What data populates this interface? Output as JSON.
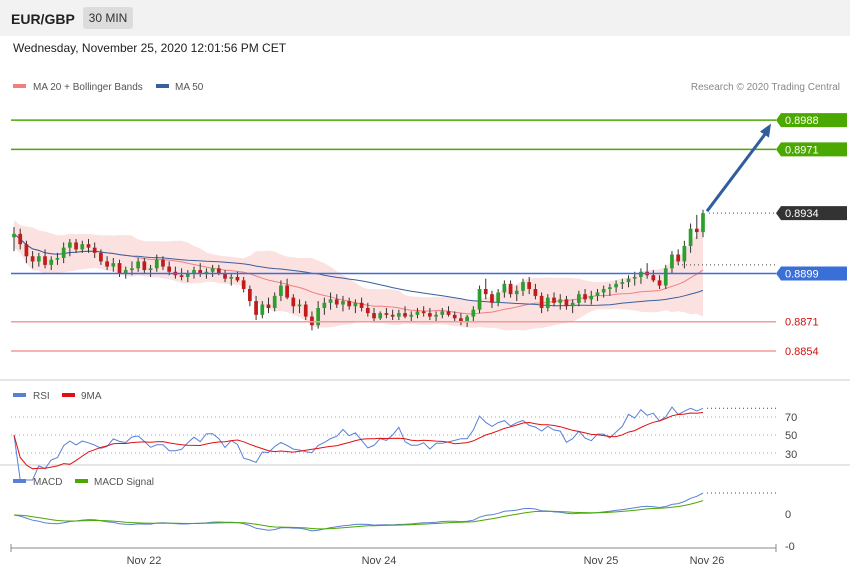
{
  "header": {
    "symbol": "EUR/GBP",
    "timeframe": "30 MIN",
    "timestamp": "Wednesday, November 25, 2020 12:01:56 PM CET"
  },
  "legend": {
    "ma20_bb": "MA 20 + Bollinger Bands",
    "ma50": "MA 50",
    "copyright": "Research © 2020 Trading Central"
  },
  "colors": {
    "bull_candle": "#2e9e2e",
    "bear_candle": "#c21b1b",
    "ma20": "#f08080",
    "bb_fill": "#fbdada",
    "ma50": "#3a5f9e",
    "resistance": "#4aa800",
    "support": "#3a6fd8",
    "support_minor": "#f59a9a",
    "arrow": "#2f5d9e",
    "rsi": "#5b7fd6",
    "rsi_ma": "#e01010",
    "macd": "#5b7fd6",
    "macd_signal": "#4aa800",
    "current_tag": "#333333"
  },
  "x_axis": {
    "ticks": [
      "Nov 22",
      "Nov 24",
      "Nov 25",
      "Nov 26"
    ]
  },
  "rsi_panel": {
    "legend_rsi": "RSI",
    "legend_ma": "9MA",
    "levels": [
      "70",
      "50",
      "30"
    ]
  },
  "macd_panel": {
    "legend_macd": "MACD",
    "legend_signal": "MACD Signal",
    "levels": [
      "0",
      "-0"
    ]
  },
  "chart_data": {
    "type": "candlestick",
    "y_range": [
      0.8843,
      0.9002
    ],
    "levels": [
      {
        "label": "0.8988",
        "value": 0.8988,
        "kind": "resistance"
      },
      {
        "label": "0.8971",
        "value": 0.8971,
        "kind": "resistance"
      },
      {
        "label": "0.8934",
        "value": 0.8934,
        "kind": "current"
      },
      {
        "label": "0.8899",
        "value": 0.8899,
        "kind": "pivot"
      },
      {
        "label": "0.8871",
        "value": 0.8871,
        "kind": "support"
      },
      {
        "label": "0.8854",
        "value": 0.8854,
        "kind": "support"
      }
    ],
    "candles": [
      [
        0.892,
        0.8926,
        0.8912,
        0.8922
      ],
      [
        0.8922,
        0.8925,
        0.8913,
        0.8916
      ],
      [
        0.8916,
        0.8918,
        0.8905,
        0.8909
      ],
      [
        0.8909,
        0.8912,
        0.8902,
        0.8906
      ],
      [
        0.8906,
        0.8911,
        0.8903,
        0.8909
      ],
      [
        0.8909,
        0.8913,
        0.8902,
        0.8904
      ],
      [
        0.8904,
        0.8909,
        0.8901,
        0.8907
      ],
      [
        0.8907,
        0.8911,
        0.8904,
        0.8908
      ],
      [
        0.8908,
        0.8917,
        0.8905,
        0.8914
      ],
      [
        0.8914,
        0.8919,
        0.8909,
        0.8917
      ],
      [
        0.8917,
        0.8919,
        0.8911,
        0.8913
      ],
      [
        0.8913,
        0.8918,
        0.8911,
        0.8916
      ],
      [
        0.8916,
        0.8919,
        0.8911,
        0.8914
      ],
      [
        0.8914,
        0.8917,
        0.8908,
        0.8911
      ],
      [
        0.8911,
        0.8913,
        0.8904,
        0.8906
      ],
      [
        0.8906,
        0.8909,
        0.8901,
        0.8903
      ],
      [
        0.8903,
        0.8908,
        0.89,
        0.8905
      ],
      [
        0.8905,
        0.8907,
        0.8897,
        0.8899
      ],
      [
        0.8899,
        0.8903,
        0.8896,
        0.8901
      ],
      [
        0.8901,
        0.8906,
        0.8898,
        0.8902
      ],
      [
        0.8902,
        0.8908,
        0.89,
        0.8906
      ],
      [
        0.8906,
        0.8908,
        0.8899,
        0.8901
      ],
      [
        0.8901,
        0.8904,
        0.8897,
        0.8902
      ],
      [
        0.8902,
        0.891,
        0.89,
        0.8907
      ],
      [
        0.8907,
        0.8909,
        0.8901,
        0.8903
      ],
      [
        0.8903,
        0.8906,
        0.8898,
        0.89
      ],
      [
        0.89,
        0.8903,
        0.8896,
        0.8898
      ],
      [
        0.8898,
        0.8902,
        0.8895,
        0.8897
      ],
      [
        0.8897,
        0.8901,
        0.8894,
        0.8899
      ],
      [
        0.8899,
        0.8903,
        0.8896,
        0.8901
      ],
      [
        0.8901,
        0.8905,
        0.8897,
        0.8899
      ],
      [
        0.8899,
        0.8902,
        0.8896,
        0.89
      ],
      [
        0.89,
        0.8904,
        0.8897,
        0.8902
      ],
      [
        0.8902,
        0.8904,
        0.8898,
        0.8899
      ],
      [
        0.8899,
        0.8901,
        0.8894,
        0.8896
      ],
      [
        0.8896,
        0.8899,
        0.8892,
        0.8897
      ],
      [
        0.8897,
        0.89,
        0.8894,
        0.8895
      ],
      [
        0.8895,
        0.8897,
        0.8888,
        0.889
      ],
      [
        0.889,
        0.8892,
        0.888,
        0.8883
      ],
      [
        0.8883,
        0.8886,
        0.8872,
        0.8875
      ],
      [
        0.8875,
        0.8883,
        0.8873,
        0.8881
      ],
      [
        0.8881,
        0.8885,
        0.8876,
        0.8879
      ],
      [
        0.8879,
        0.8888,
        0.8877,
        0.8886
      ],
      [
        0.8886,
        0.8895,
        0.8883,
        0.8892
      ],
      [
        0.8892,
        0.8896,
        0.8884,
        0.8885
      ],
      [
        0.8885,
        0.8887,
        0.8876,
        0.888
      ],
      [
        0.888,
        0.8884,
        0.8876,
        0.8881
      ],
      [
        0.8881,
        0.8883,
        0.8872,
        0.8874
      ],
      [
        0.8874,
        0.8877,
        0.8866,
        0.8869
      ],
      [
        0.8869,
        0.8883,
        0.8867,
        0.8879
      ],
      [
        0.8879,
        0.8885,
        0.8875,
        0.8882
      ],
      [
        0.8882,
        0.8888,
        0.8878,
        0.8884
      ],
      [
        0.8884,
        0.8887,
        0.8879,
        0.8881
      ],
      [
        0.8881,
        0.8886,
        0.8877,
        0.8883
      ],
      [
        0.8883,
        0.8885,
        0.8878,
        0.888
      ],
      [
        0.888,
        0.8884,
        0.8876,
        0.8882
      ],
      [
        0.8882,
        0.8885,
        0.8877,
        0.8879
      ],
      [
        0.8879,
        0.8882,
        0.8874,
        0.8876
      ],
      [
        0.8876,
        0.8879,
        0.8871,
        0.8873
      ],
      [
        0.8873,
        0.8877,
        0.8872,
        0.8876
      ],
      [
        0.8876,
        0.8879,
        0.8873,
        0.8875
      ],
      [
        0.8875,
        0.8878,
        0.8872,
        0.8874
      ],
      [
        0.8874,
        0.8878,
        0.8872,
        0.8876
      ],
      [
        0.8876,
        0.888,
        0.8873,
        0.8874
      ],
      [
        0.8874,
        0.8877,
        0.8871,
        0.8875
      ],
      [
        0.8875,
        0.8879,
        0.8873,
        0.8877
      ],
      [
        0.8877,
        0.888,
        0.8874,
        0.8876
      ],
      [
        0.8876,
        0.8879,
        0.8872,
        0.8874
      ],
      [
        0.8874,
        0.8877,
        0.8871,
        0.8875
      ],
      [
        0.8875,
        0.8879,
        0.8873,
        0.8877
      ],
      [
        0.8877,
        0.888,
        0.8874,
        0.8875
      ],
      [
        0.8875,
        0.8877,
        0.8871,
        0.8873
      ],
      [
        0.8873,
        0.8876,
        0.8869,
        0.8871
      ],
      [
        0.8871,
        0.8875,
        0.8868,
        0.8874
      ],
      [
        0.8874,
        0.888,
        0.8871,
        0.8878
      ],
      [
        0.8878,
        0.8892,
        0.8876,
        0.889
      ],
      [
        0.889,
        0.8896,
        0.8884,
        0.8887
      ],
      [
        0.8887,
        0.8889,
        0.8879,
        0.8882
      ],
      [
        0.8882,
        0.889,
        0.888,
        0.8888
      ],
      [
        0.8888,
        0.8895,
        0.8885,
        0.8893
      ],
      [
        0.8893,
        0.8895,
        0.8885,
        0.8887
      ],
      [
        0.8887,
        0.8892,
        0.8883,
        0.8889
      ],
      [
        0.8889,
        0.8896,
        0.8886,
        0.8894
      ],
      [
        0.8894,
        0.8897,
        0.8887,
        0.889
      ],
      [
        0.889,
        0.8893,
        0.8884,
        0.8886
      ],
      [
        0.8886,
        0.8888,
        0.8876,
        0.8879
      ],
      [
        0.8879,
        0.8887,
        0.8877,
        0.8885
      ],
      [
        0.8885,
        0.8888,
        0.888,
        0.8882
      ],
      [
        0.8882,
        0.8887,
        0.8878,
        0.8884
      ],
      [
        0.8884,
        0.8886,
        0.8878,
        0.888
      ],
      [
        0.888,
        0.8884,
        0.8876,
        0.8882
      ],
      [
        0.8882,
        0.8889,
        0.888,
        0.8887
      ],
      [
        0.8887,
        0.889,
        0.8882,
        0.8884
      ],
      [
        0.8884,
        0.8889,
        0.8881,
        0.8886
      ],
      [
        0.8886,
        0.889,
        0.8883,
        0.8888
      ],
      [
        0.8888,
        0.8892,
        0.8885,
        0.889
      ],
      [
        0.889,
        0.8893,
        0.8886,
        0.8891
      ],
      [
        0.8891,
        0.8895,
        0.8888,
        0.8893
      ],
      [
        0.8893,
        0.8896,
        0.889,
        0.8894
      ],
      [
        0.8894,
        0.8898,
        0.8891,
        0.8896
      ],
      [
        0.8896,
        0.89,
        0.8892,
        0.8897
      ],
      [
        0.8897,
        0.8902,
        0.8893,
        0.89
      ],
      [
        0.89,
        0.8905,
        0.8896,
        0.8898
      ],
      [
        0.8898,
        0.8901,
        0.8894,
        0.8895
      ],
      [
        0.8895,
        0.8898,
        0.889,
        0.8892
      ],
      [
        0.8892,
        0.8904,
        0.889,
        0.8902
      ],
      [
        0.8902,
        0.8912,
        0.8899,
        0.891
      ],
      [
        0.891,
        0.8913,
        0.8904,
        0.8906
      ],
      [
        0.8906,
        0.8918,
        0.8902,
        0.8915
      ],
      [
        0.8915,
        0.8928,
        0.8911,
        0.8925
      ],
      [
        0.8925,
        0.8933,
        0.8919,
        0.8923
      ],
      [
        0.8923,
        0.8936,
        0.892,
        0.8934
      ]
    ]
  }
}
